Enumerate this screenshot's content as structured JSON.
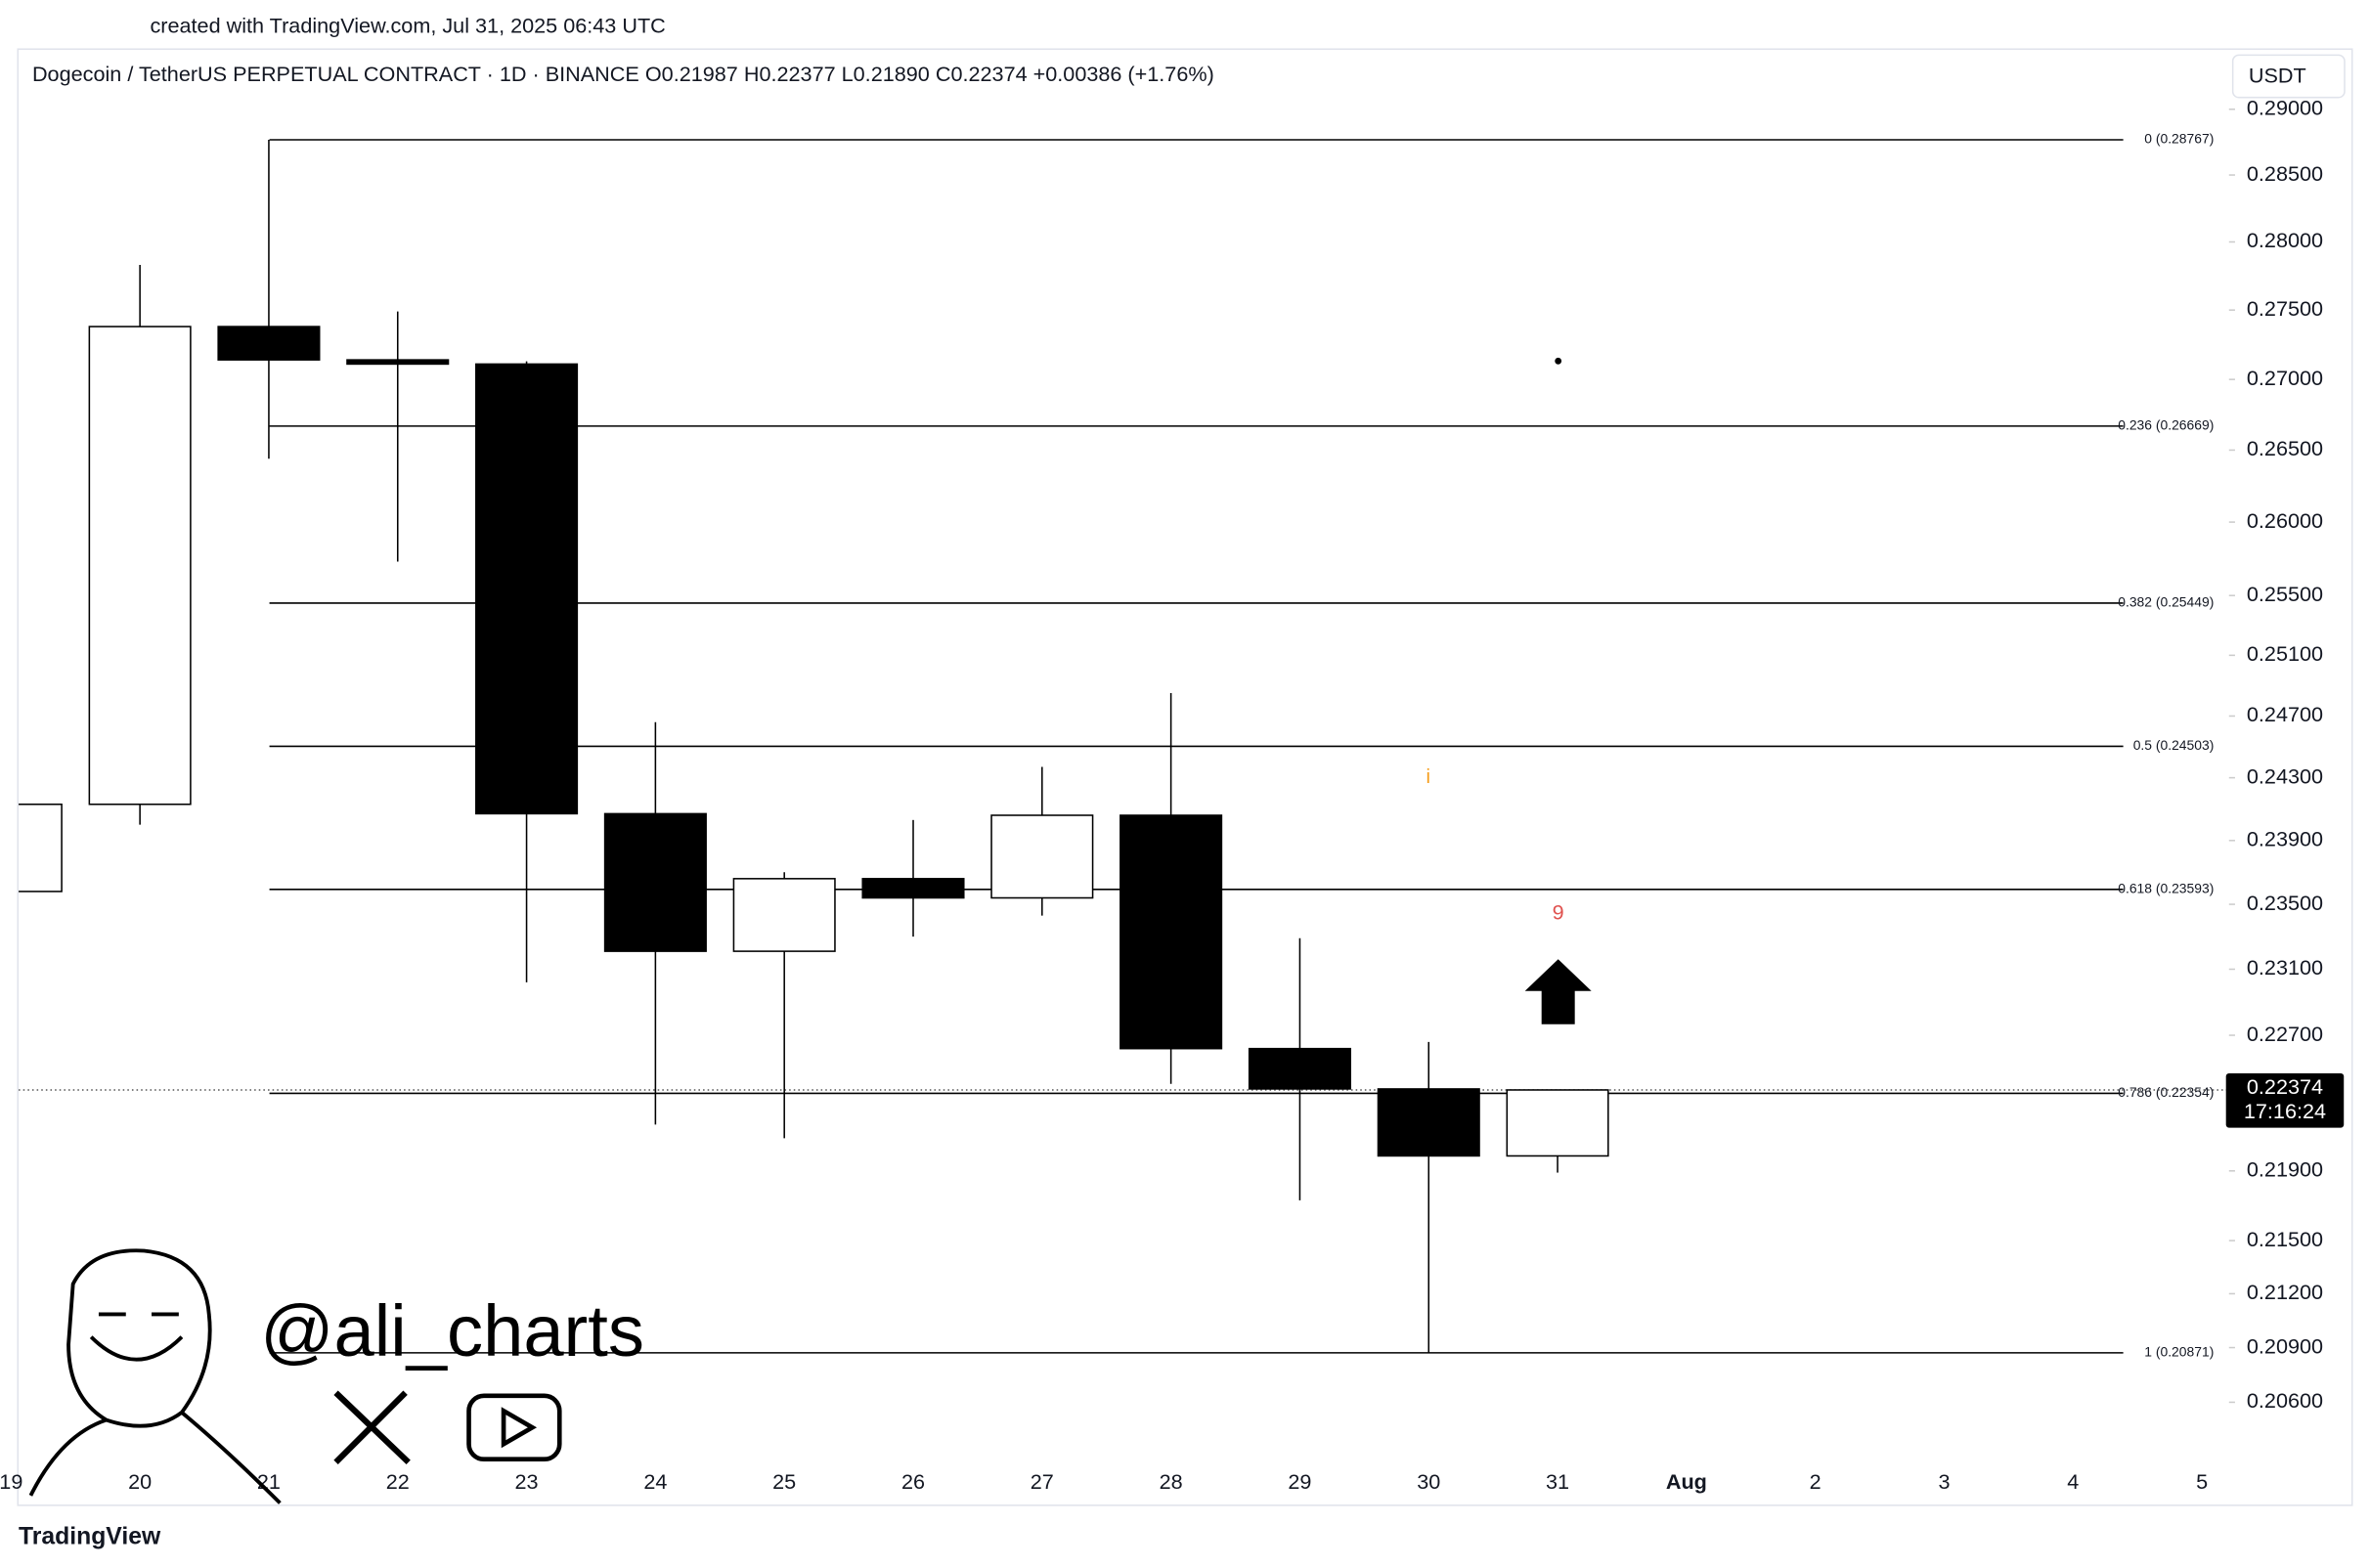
{
  "chart_data": {
    "type": "candlestick",
    "watermark_top": "created with TradingView.com, Jul 31, 2025 06:43 UTC",
    "title": "Dogecoin / TetherUS PERPETUAL CONTRACT · 1D · BINANCE  O0.21987  H0.22377  L0.21890  C0.22374  +0.00386 (+1.76%)",
    "currency": "USDT",
    "brand": "TradingView",
    "author": "@ali_charts",
    "categories": [
      "19",
      "20",
      "21",
      "22",
      "23",
      "24",
      "25",
      "26",
      "27",
      "28",
      "29",
      "30",
      "31",
      "Aug",
      "2",
      "3",
      "4",
      "5"
    ],
    "open": [
      0.2358,
      0.2413,
      0.2738,
      0.2714,
      0.2711,
      0.2407,
      0.2321,
      0.2366,
      0.2354,
      0.2406,
      0.2262,
      0.2238,
      0.21987,
      null,
      null,
      null,
      null,
      null
    ],
    "high": [
      0.2413,
      0.2783,
      0.28767,
      0.2749,
      0.2713,
      0.2466,
      0.237,
      0.2403,
      0.2437,
      0.2485,
      0.2329,
      0.2266,
      0.22377,
      null,
      null,
      null,
      null,
      null
    ],
    "low": [
      0.2358,
      0.24,
      0.2644,
      0.2573,
      0.2302,
      0.2217,
      0.2209,
      0.233,
      0.2343,
      0.2241,
      0.2173,
      0.20871,
      0.2189,
      null,
      null,
      null,
      null,
      null
    ],
    "close": [
      0.2413,
      0.2738,
      0.2714,
      0.2711,
      0.2407,
      0.2321,
      0.2366,
      0.2354,
      0.2406,
      0.2262,
      0.2238,
      0.21987,
      0.22374,
      null,
      null,
      null,
      null,
      null
    ],
    "up_color": "#ffffff",
    "down_color": "#000000",
    "fib_levels": [
      {
        "value": 0.28767,
        "label": "0 (0.28767)"
      },
      {
        "value": 0.26669,
        "label": "0.236 (0.26669)"
      },
      {
        "value": 0.25449,
        "label": "0.382 (0.25449)"
      },
      {
        "value": 0.24503,
        "label": "0.5 (0.24503)"
      },
      {
        "value": 0.23593,
        "label": "0.618 (0.23593)"
      },
      {
        "value": 0.22354,
        "label": "0.786 (0.22354)"
      },
      {
        "value": 0.20871,
        "label": "1 (0.20871)"
      }
    ],
    "last_price": 0.22374,
    "countdown": "17:16:24",
    "annotations": [
      "i",
      "9"
    ],
    "log_scale": true,
    "ylim": [
      0.203,
      0.2912
    ],
    "yticks": [
      {
        "value": 0.29,
        "label": "0.29000"
      },
      {
        "value": 0.285,
        "label": "0.28500"
      },
      {
        "value": 0.28,
        "label": "0.28000"
      },
      {
        "value": 0.275,
        "label": "0.27500"
      },
      {
        "value": 0.27,
        "label": "0.27000"
      },
      {
        "value": 0.265,
        "label": "0.26500"
      },
      {
        "value": 0.26,
        "label": "0.26000"
      },
      {
        "value": 0.255,
        "label": "0.25500"
      },
      {
        "value": 0.251,
        "label": "0.25100"
      },
      {
        "value": 0.247,
        "label": "0.24700"
      },
      {
        "value": 0.243,
        "label": "0.24300"
      },
      {
        "value": 0.239,
        "label": "0.23900"
      },
      {
        "value": 0.235,
        "label": "0.23500"
      },
      {
        "value": 0.231,
        "label": "0.23100"
      },
      {
        "value": 0.227,
        "label": "0.22700"
      },
      {
        "value": 0.219,
        "label": "0.21900"
      },
      {
        "value": 0.215,
        "label": "0.21500"
      },
      {
        "value": 0.212,
        "label": "0.21200"
      },
      {
        "value": 0.209,
        "label": "0.20900"
      },
      {
        "value": 0.206,
        "label": "0.20600"
      }
    ]
  }
}
